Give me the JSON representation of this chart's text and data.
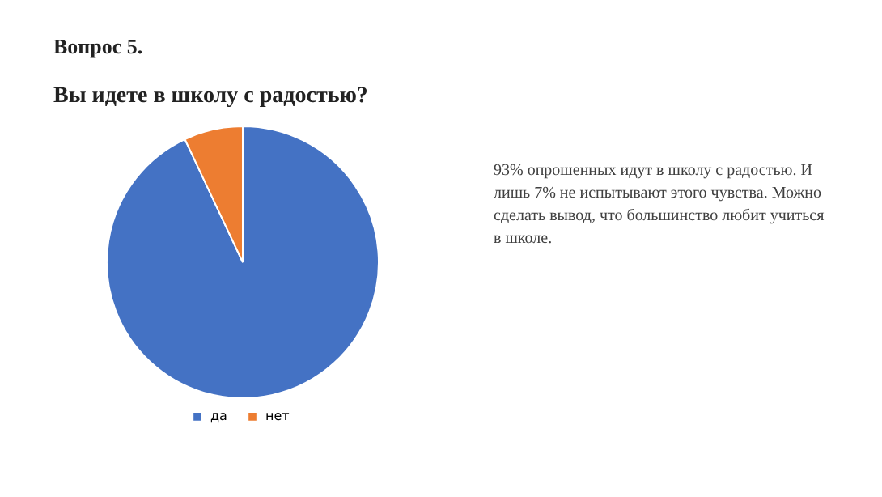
{
  "chart_data": {
    "type": "pie",
    "title": "Вопрос 5.",
    "subtitle": "Вы идете в школу с радостью?",
    "categories": [
      "да",
      "нет"
    ],
    "values": [
      93,
      7
    ],
    "colors": [
      "#4472c4",
      "#ed7d31"
    ],
    "legend": "bottom",
    "annotations": [
      "93% опрошенных идут в школу с радостью. И лишь 7% не испытывают этого чувства. Можно сделать вывод, что большинство любит учиться в школе."
    ]
  }
}
